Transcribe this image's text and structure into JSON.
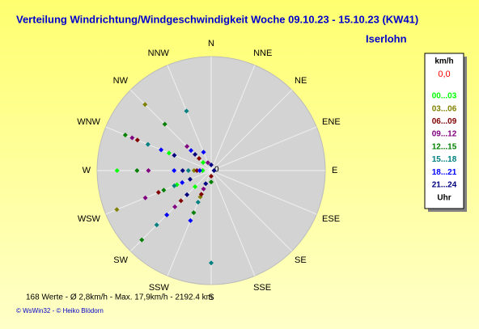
{
  "chart_data": {
    "type": "polar-scatter",
    "title": "Verteilung Windrichtung/Windgeschwindigkeit  Woche 09.10.23 - 15.10.23 (KW41)",
    "subtitle": "Iserlohn",
    "directions": [
      "N",
      "NNE",
      "NE",
      "ENE",
      "E",
      "ESE",
      "SE",
      "SSE",
      "S",
      "SSW",
      "SW",
      "WSW",
      "W",
      "WNW",
      "NW",
      "NNW"
    ],
    "rlim": [
      0,
      20
    ],
    "legend_title": "km/h",
    "current_value": "0,0",
    "legend_footer": "Uhr",
    "footer": "168 Werte   -   Ø 2,8km/h  -  Max. 17,9km/h   -   2192.4 km",
    "credits": "© WsWin32  -  © Heiko Blödorn",
    "series": [
      {
        "name": "00...03",
        "color": "#00ff00",
        "x": [
          270,
          292.5,
          247.5,
          225,
          270,
          315
        ],
        "values": [
          16.5,
          8.0,
          6.5,
          4.0,
          1.5,
          2.0
        ]
      },
      {
        "name": "03...06",
        "color": "#808000",
        "x": [
          315,
          247.5,
          225,
          202.5,
          270
        ],
        "values": [
          16.4,
          17.9,
          11.0,
          5.0,
          3.0
        ]
      },
      {
        "name": "06...09",
        "color": "#800000",
        "x": [
          292.5,
          247.5,
          225,
          202.5,
          315,
          270,
          180
        ],
        "values": [
          14.0,
          10.0,
          7.5,
          4.5,
          3.0,
          2.5,
          1.0
        ]
      },
      {
        "name": "09...12",
        "color": "#800080",
        "x": [
          292.5,
          270,
          247.5,
          225,
          315,
          202.5,
          337.5
        ],
        "values": [
          15.0,
          11.0,
          12.5,
          9.0,
          6.0,
          3.5,
          1.5
        ]
      },
      {
        "name": "12...15",
        "color": "#008000",
        "x": [
          292.5,
          270,
          247.5,
          225,
          202.5,
          315,
          180
        ],
        "values": [
          16.3,
          13.0,
          9.0,
          17.2,
          8.0,
          11.5,
          2.0
        ]
      },
      {
        "name": "15...18",
        "color": "#008080",
        "x": [
          337.5,
          180,
          292.5,
          247.5,
          225,
          202.5,
          270
        ],
        "values": [
          11.3,
          16.2,
          12.0,
          7.0,
          13.5,
          6.0,
          4.0
        ]
      },
      {
        "name": "18...21",
        "color": "#0000ff",
        "x": [
          292.5,
          270,
          247.5,
          225,
          202.5,
          315,
          337.5,
          270
        ],
        "values": [
          9.5,
          6.5,
          5.5,
          11.0,
          9.5,
          5.0,
          3.5,
          2.0
        ]
      },
      {
        "name": "21...24",
        "color": "#000080",
        "x": [
          292.5,
          270,
          247.5,
          225,
          315,
          202.5,
          0,
          90
        ],
        "values": [
          7.0,
          5.0,
          4.0,
          6.0,
          4.0,
          2.5,
          1.0,
          0.5
        ]
      }
    ]
  }
}
